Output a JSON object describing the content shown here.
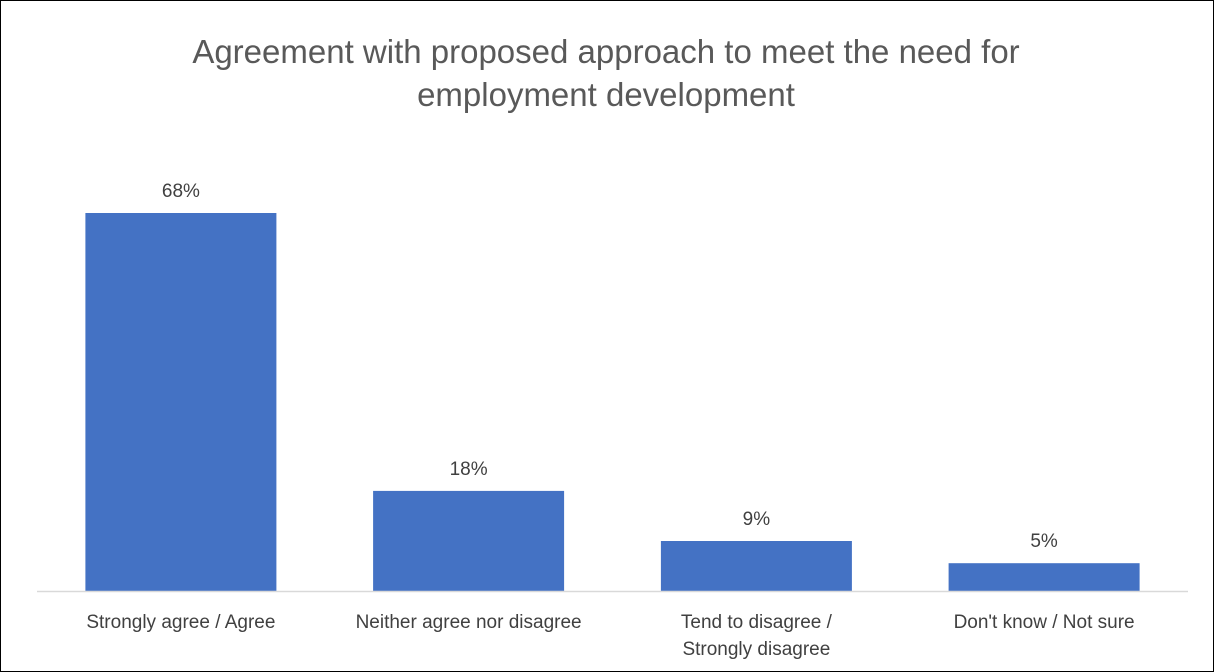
{
  "chart_data": {
    "type": "bar",
    "title": "Agreement with proposed approach to meet the need for employment development",
    "categories": [
      [
        "Strongly agree / Agree"
      ],
      [
        "Neither agree nor disagree"
      ],
      [
        "Tend to disagree /",
        "Strongly disagree"
      ],
      [
        "Don't know / Not sure"
      ]
    ],
    "values": [
      68,
      18,
      9,
      5
    ],
    "value_labels": [
      "68%",
      "18%",
      "9%",
      "5%"
    ],
    "ylim": [
      0,
      68
    ],
    "xlabel": "",
    "ylabel": "",
    "grid": false,
    "legend": "none",
    "bar_color": "#4472C4",
    "axis_color": "#D9D9D9",
    "text_color": "#404040",
    "title_color": "#595959"
  }
}
